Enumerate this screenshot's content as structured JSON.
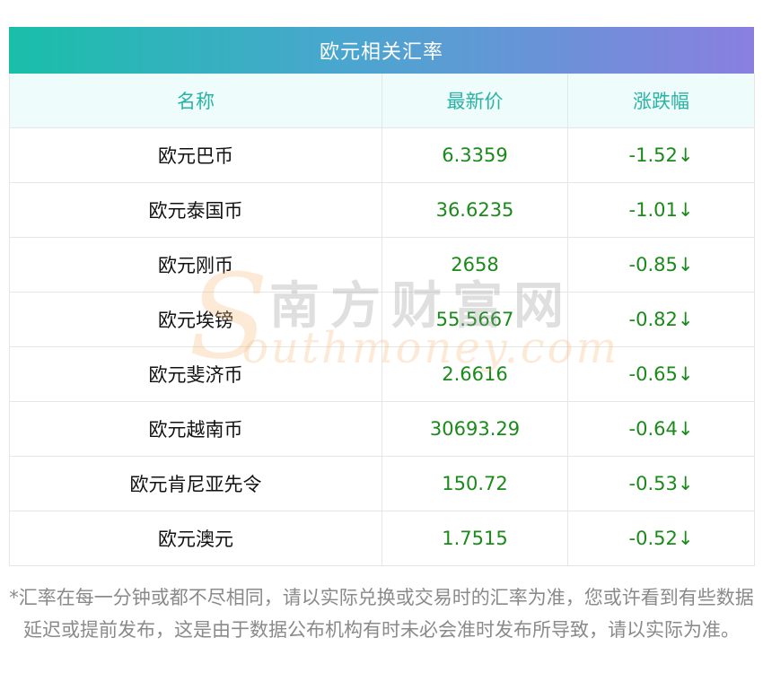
{
  "title": "欧元相关汇率",
  "columns": {
    "name": "名称",
    "price": "最新价",
    "change": "涨跌幅"
  },
  "rows": [
    {
      "name": "欧元巴币",
      "price": "6.3359",
      "change": "-1.52↓"
    },
    {
      "name": "欧元泰国币",
      "price": "36.6235",
      "change": "-1.01↓"
    },
    {
      "name": "欧元刚币",
      "price": "2658",
      "change": "-0.85↓"
    },
    {
      "name": "欧元埃镑",
      "price": "55.5667",
      "change": "-0.82↓"
    },
    {
      "name": "欧元斐济币",
      "price": "2.6616",
      "change": "-0.65↓"
    },
    {
      "name": "欧元越南币",
      "price": "30693.29",
      "change": "-0.64↓"
    },
    {
      "name": "欧元肯尼亚先令",
      "price": "150.72",
      "change": "-0.53↓"
    },
    {
      "name": "欧元澳元",
      "price": "1.7515",
      "change": "-0.52↓"
    }
  ],
  "footnote": "*汇率在每一分钟或都不尽相同，请以实际兑换或交易时的汇率为准，您或许看到有些数据延迟或提前发布，这是由于数据公布机构有时未必会准时发布所导致，请以实际为准。",
  "watermark": {
    "letter": "S",
    "cn": "南方财富网",
    "en": "outhmoney.com"
  },
  "colors": {
    "gradient_start": "#19bfa9",
    "gradient_end": "#8a7fe0",
    "header_text": "#2ab3a5",
    "value_green": "#1a8a1a",
    "footnote_gray": "#8a8a8a"
  }
}
